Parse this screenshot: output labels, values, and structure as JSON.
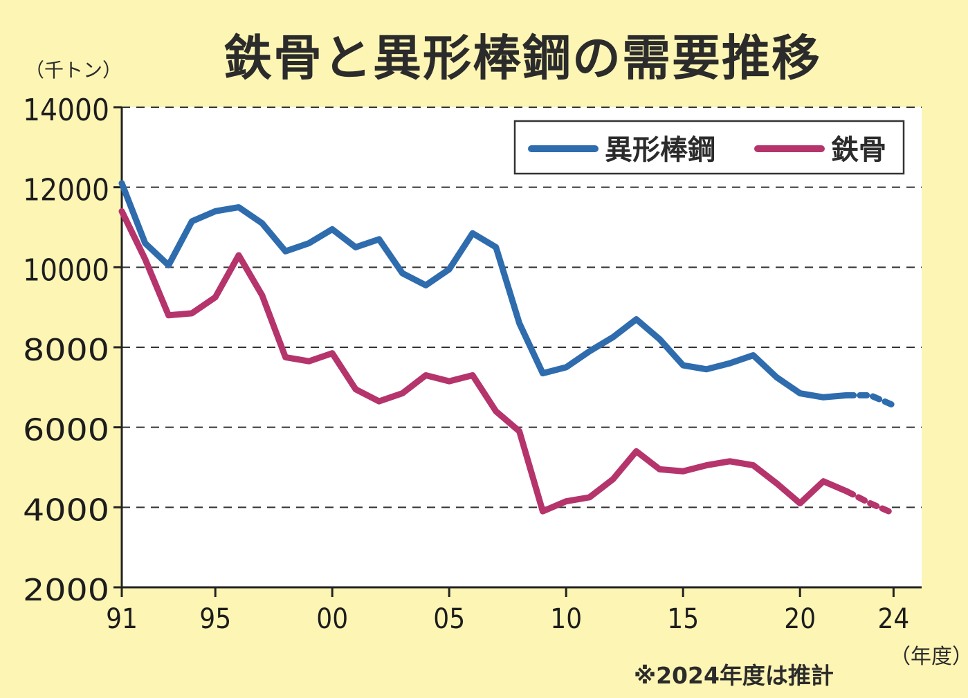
{
  "title": "鉄骨と異形棒鋼の需要推移",
  "unit_label": "（千トン）",
  "x_unit_label": "（年度）",
  "note": "※2024年度は推計",
  "colors": {
    "background": "#fdf5b4",
    "plot_background": "#ffffff",
    "rebar": "#2e6cae",
    "steel_frame": "#b5346b"
  },
  "chart_data": {
    "type": "line",
    "title": "鉄骨と異形棒鋼の需要推移",
    "ylabel": "（千トン）",
    "xlabel": "（年度）",
    "ylim": [
      2000,
      14000
    ],
    "xlim": [
      1991,
      2024
    ],
    "y_ticks": [
      "2000",
      "4000",
      "6000",
      "8000",
      "10000",
      "12000",
      "14000"
    ],
    "x_ticks": [
      {
        "year": 1991,
        "label": "91"
      },
      {
        "year": 1995,
        "label": "95"
      },
      {
        "year": 2000,
        "label": "00"
      },
      {
        "year": 2005,
        "label": "05"
      },
      {
        "year": 2010,
        "label": "10"
      },
      {
        "year": 2015,
        "label": "15"
      },
      {
        "year": 2020,
        "label": "20"
      },
      {
        "year": 2024,
        "label": "24"
      }
    ],
    "grid": "horizontal-dashed",
    "legend_position": "top-right",
    "estimated_from_year": 2023,
    "x": [
      1991,
      1992,
      1993,
      1994,
      1995,
      1996,
      1997,
      1998,
      1999,
      2000,
      2001,
      2002,
      2003,
      2004,
      2005,
      2006,
      2007,
      2008,
      2009,
      2010,
      2011,
      2012,
      2013,
      2014,
      2015,
      2016,
      2017,
      2018,
      2019,
      2020,
      2021,
      2022,
      2023,
      2024
    ],
    "series": [
      {
        "name": "異形棒鋼",
        "color": "#2e6cae",
        "values": [
          12100,
          10600,
          10050,
          11150,
          11400,
          11500,
          11100,
          10400,
          10600,
          10950,
          10500,
          10700,
          9850,
          9550,
          9950,
          10850,
          10500,
          8600,
          7350,
          7500,
          7900,
          8250,
          8700,
          8200,
          7550,
          7450,
          7600,
          7800,
          7250,
          6850,
          6750,
          6800,
          6800,
          6550
        ]
      },
      {
        "name": "鉄骨",
        "color": "#b5346b",
        "values": [
          11400,
          10200,
          8800,
          8850,
          9250,
          10300,
          9300,
          7750,
          7650,
          7850,
          6950,
          6650,
          6850,
          7300,
          7150,
          7300,
          6400,
          5900,
          3900,
          4150,
          4250,
          4700,
          5400,
          4950,
          4900,
          5050,
          5150,
          5050,
          4600,
          4100,
          4650,
          4400,
          4100,
          3850
        ]
      }
    ]
  }
}
